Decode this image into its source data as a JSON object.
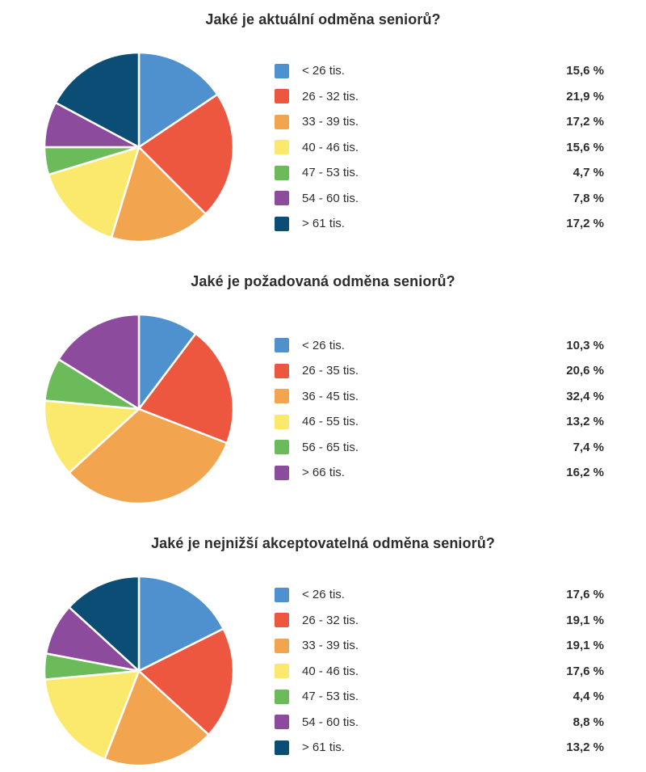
{
  "page": {
    "background": "#ffffff",
    "text_color": "#2d2d2d"
  },
  "chart_data": [
    {
      "type": "pie",
      "title": "Jaké je aktuální odměna seniorů?",
      "legend_position": "right",
      "start_angle_deg": -90,
      "direction": "clockwise",
      "units": "percent",
      "categories": [
        "< 26 tis.",
        "26 - 32 tis.",
        "33 - 39 tis.",
        "40 - 46 tis.",
        "47 - 53 tis.",
        "54 - 60 tis.",
        "> 61 tis."
      ],
      "values": [
        15.6,
        21.9,
        17.2,
        15.6,
        4.7,
        7.8,
        17.2
      ],
      "percent_labels": [
        "15,6 %",
        "21,9 %",
        "17,2 %",
        "15,6 %",
        "4,7 %",
        "7,8 %",
        "17,2 %"
      ],
      "colors": [
        "#4f91cf",
        "#ed5740",
        "#f3a44e",
        "#fae96d",
        "#6cbb5b",
        "#8d4b9e",
        "#0c4d76"
      ]
    },
    {
      "type": "pie",
      "title": "Jaké je požadovaná odměna seniorů?",
      "legend_position": "right",
      "start_angle_deg": -90,
      "direction": "clockwise",
      "units": "percent",
      "categories": [
        "< 26 tis.",
        "26 - 35 tis.",
        "36 - 45 tis.",
        "46 - 55 tis.",
        "56 - 65 tis.",
        "> 66 tis."
      ],
      "values": [
        10.3,
        20.6,
        32.4,
        13.2,
        7.4,
        16.2
      ],
      "percent_labels": [
        "10,3 %",
        "20,6 %",
        "32,4 %",
        "13,2 %",
        "7,4 %",
        "16,2 %"
      ],
      "colors": [
        "#4f91cf",
        "#ed5740",
        "#f3a44e",
        "#fae96d",
        "#6cbb5b",
        "#8d4b9e"
      ]
    },
    {
      "type": "pie",
      "title": "Jaké je nejnižší akceptovatelná odměna seniorů?",
      "legend_position": "right",
      "start_angle_deg": -90,
      "direction": "clockwise",
      "units": "percent",
      "categories": [
        "< 26 tis.",
        "26 - 32 tis.",
        "33 - 39 tis.",
        "40 - 46 tis.",
        "47 - 53 tis.",
        "54 - 60 tis.",
        "> 61 tis."
      ],
      "values": [
        17.6,
        19.1,
        19.1,
        17.6,
        4.4,
        8.8,
        13.2
      ],
      "percent_labels": [
        "17,6 %",
        "19,1 %",
        "19,1 %",
        "17,6 %",
        "4,4 %",
        "8,8 %",
        "13,2 %"
      ],
      "colors": [
        "#4f91cf",
        "#ed5740",
        "#f3a44e",
        "#fae96d",
        "#6cbb5b",
        "#8d4b9e",
        "#0c4d76"
      ]
    }
  ]
}
